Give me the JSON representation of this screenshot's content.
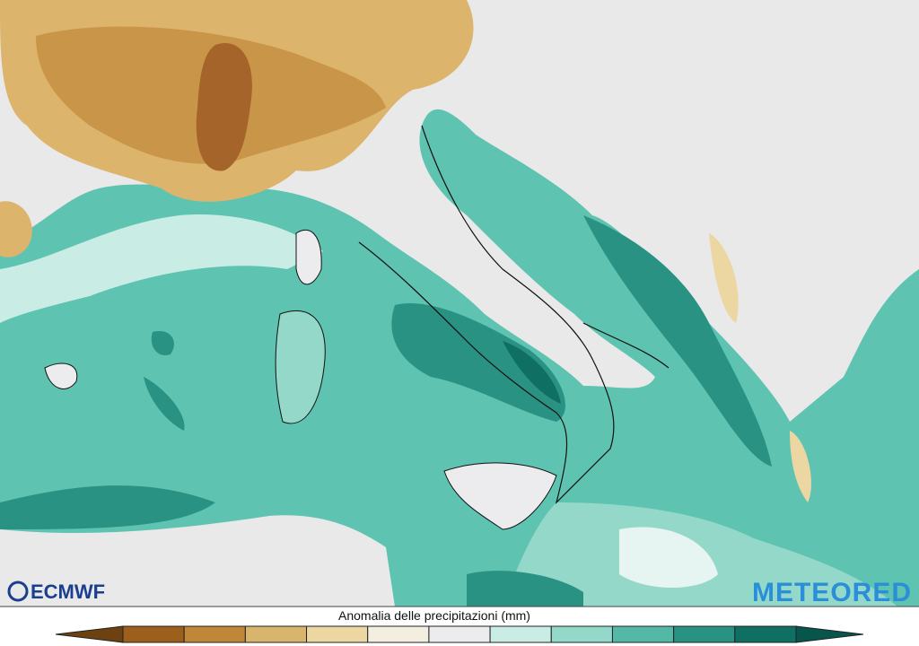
{
  "logos": {
    "left": "ECMWF",
    "right": "METEORED"
  },
  "legend": {
    "title": "Anomalia delle precipitazioni (mm)",
    "colors": [
      "#6e4210",
      "#9c5f1c",
      "#c0873a",
      "#d9b46c",
      "#ecd6a2",
      "#f3eee0",
      "#ececee",
      "#c9ede4",
      "#93d8c8",
      "#54b8a6",
      "#2a9283",
      "#0f6f62",
      "#07564b"
    ]
  }
}
